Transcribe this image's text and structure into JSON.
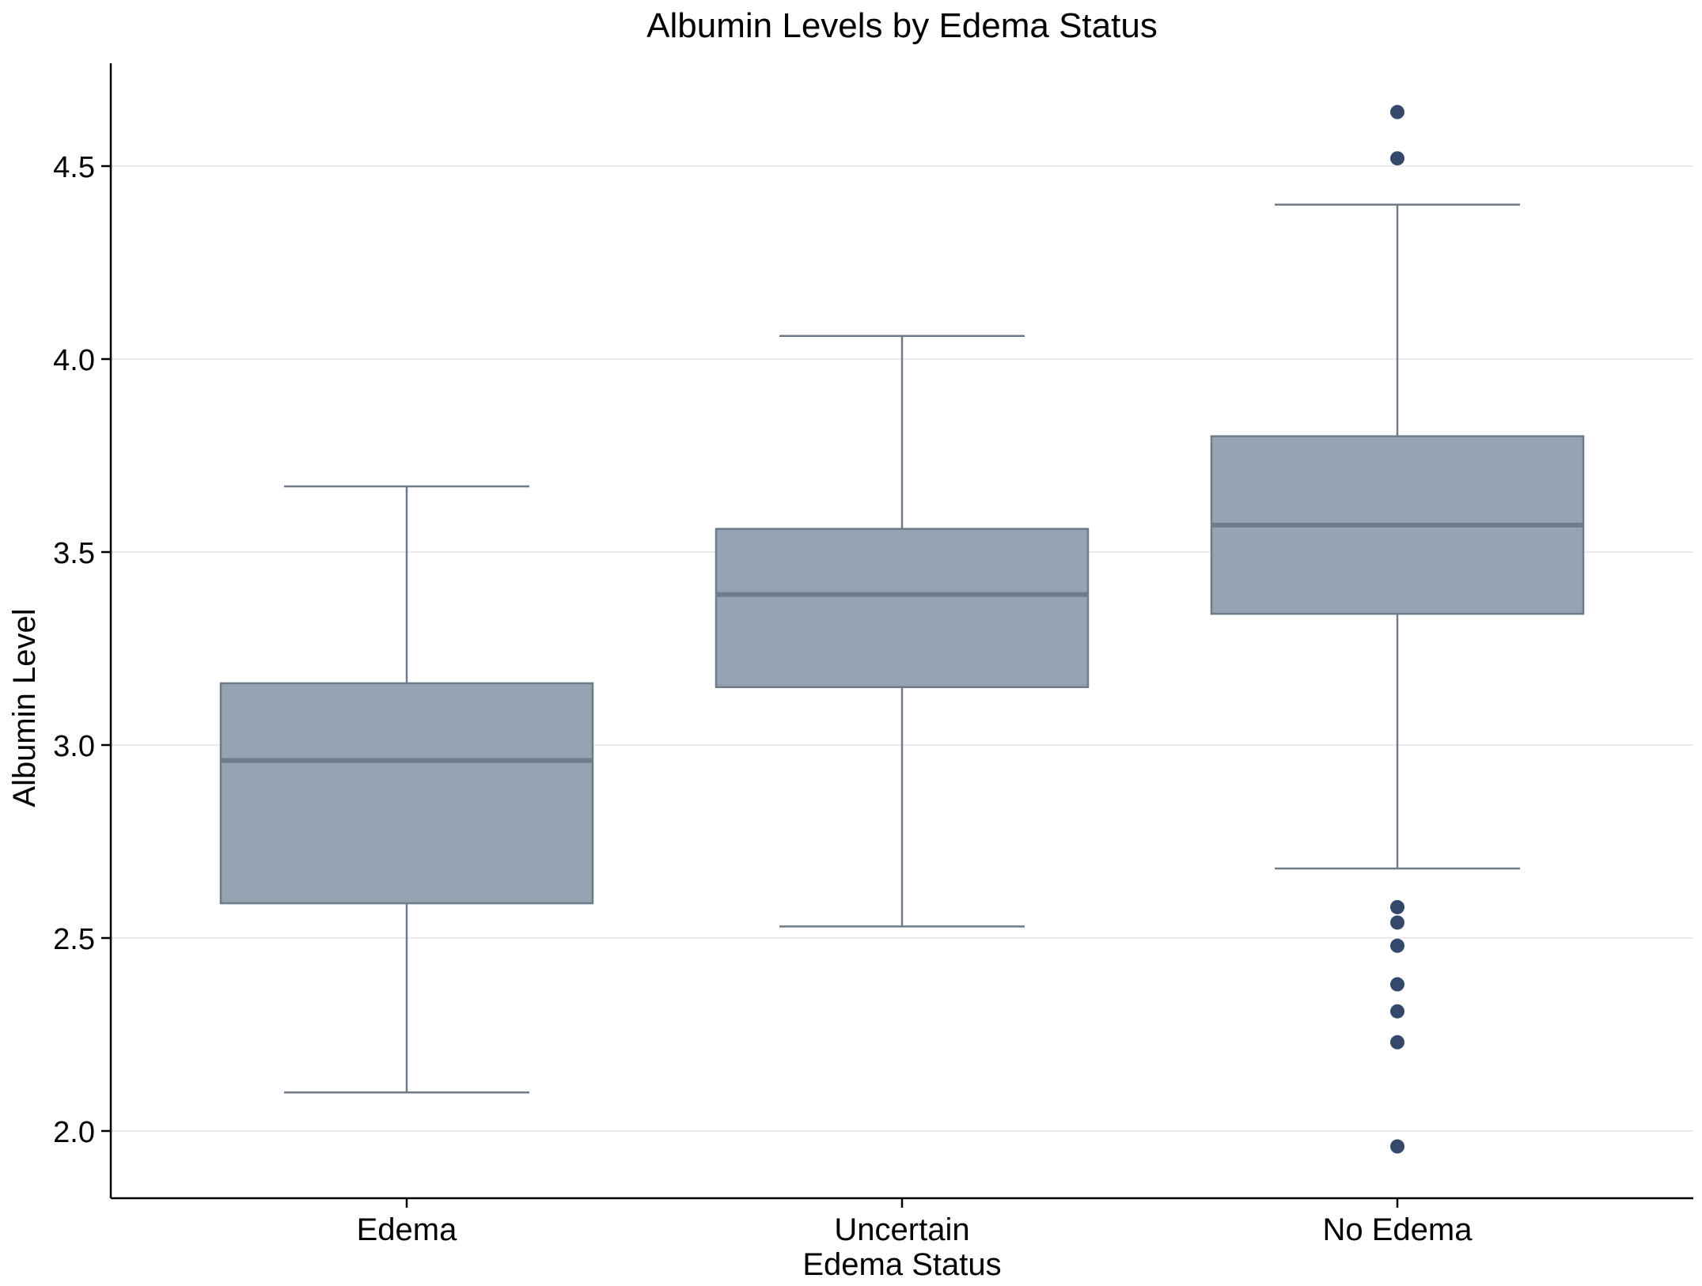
{
  "chart_data": {
    "type": "boxplot",
    "title": "Albumin Levels by Edema Status",
    "xlabel": "Edema Status",
    "ylabel": "Albumin Level",
    "ylim": [
      1.83,
      4.78
    ],
    "yticks": [
      2.0,
      2.5,
      3.0,
      3.5,
      4.0,
      4.5
    ],
    "ytick_labels": [
      "2.0",
      "2.5",
      "3.0",
      "3.5",
      "4.0",
      "4.5"
    ],
    "grid": "horizontal",
    "categories": [
      "Edema",
      "Uncertain",
      "No Edema"
    ],
    "boxes": [
      {
        "category": "Edema",
        "whisker_low": 2.1,
        "q1": 2.59,
        "median": 2.96,
        "q3": 3.16,
        "whisker_high": 3.67,
        "outliers": []
      },
      {
        "category": "Uncertain",
        "whisker_low": 2.53,
        "q1": 3.15,
        "median": 3.39,
        "q3": 3.56,
        "whisker_high": 4.06,
        "outliers": []
      },
      {
        "category": "No Edema",
        "whisker_low": 2.68,
        "q1": 3.34,
        "median": 3.57,
        "q3": 3.8,
        "whisker_high": 4.4,
        "outliers": [
          4.64,
          4.52,
          2.58,
          2.54,
          2.48,
          2.38,
          2.31,
          2.23,
          1.96
        ]
      }
    ],
    "colors": {
      "box_fill": "#96a3b3",
      "box_edge": "#6e7b8a",
      "median": "#6e7b8a",
      "outlier": "#34486b",
      "grid": "#ebebeb",
      "axis": "#000000"
    }
  }
}
